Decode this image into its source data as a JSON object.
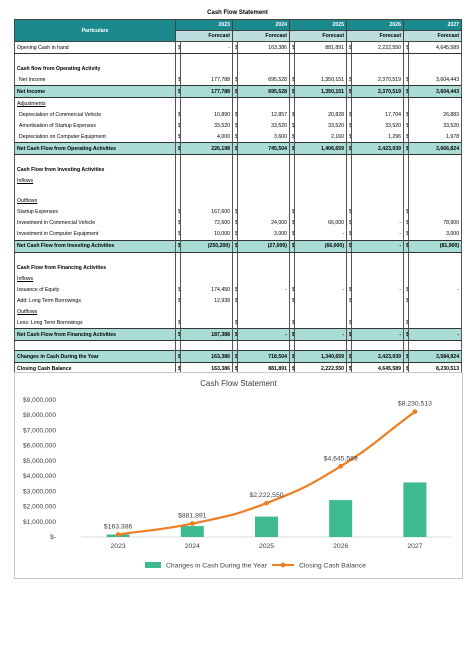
{
  "title": "Cash Flow Statement",
  "particulars_label": "Particulars",
  "years": [
    "2023",
    "2024",
    "2025",
    "2026",
    "2027"
  ],
  "forecast_label": "Forecast",
  "currency": "$",
  "rows": [
    {
      "label": "Opening Cash in hand",
      "values": [
        "-",
        "163,386",
        "881,891",
        "2,222,550",
        "4,645,589"
      ],
      "kind": "data"
    },
    {
      "label": "",
      "kind": "blank"
    },
    {
      "label": "Cash flow from Operating Activity",
      "kind": "section"
    },
    {
      "label": "Net Income",
      "values": [
        "177,788",
        "695,528",
        "1,350,151",
        "2,370,519",
        "3,604,443"
      ],
      "kind": "data",
      "indent": true
    },
    {
      "label": "Net Income",
      "values": [
        "177,788",
        "695,528",
        "1,350,151",
        "2,370,519",
        "3,604,443"
      ],
      "kind": "highlight"
    },
    {
      "label": "Adjustments",
      "kind": "underline"
    },
    {
      "label": "Depreciation of Commercial Vehicle",
      "values": [
        "10,890",
        "12,857",
        "20,828",
        "17,704",
        "26,883"
      ],
      "kind": "data",
      "indent": true
    },
    {
      "label": "Amortisation of Startup Expenses",
      "values": [
        "33,520",
        "33,520",
        "33,520",
        "33,520",
        "33,520"
      ],
      "kind": "data",
      "indent": true
    },
    {
      "label": "Depreciation on Computer Equipment",
      "values": [
        "4,000",
        "3,600",
        "2,160",
        "1,296",
        "1,978"
      ],
      "kind": "data",
      "indent": true
    },
    {
      "label": "Net Cash Flow from Operating Activities",
      "values": [
        "226,198",
        "745,504",
        "1,406,659",
        "2,423,039",
        "3,666,824"
      ],
      "kind": "highlight"
    },
    {
      "label": "",
      "kind": "blank"
    },
    {
      "label": "Cash Flow from Investing Activities",
      "kind": "section"
    },
    {
      "label": "Inflows",
      "kind": "underline"
    },
    {
      "label": "",
      "kind": "blank"
    },
    {
      "label": "Outflows",
      "kind": "underline"
    },
    {
      "label": "Startup Expenses",
      "values": [
        "167,600",
        "",
        "",
        "",
        ""
      ],
      "kind": "data"
    },
    {
      "label": "Investment in Commercial Vehicle",
      "values": [
        "72,600",
        "24,000",
        "66,000",
        "-",
        "78,900"
      ],
      "kind": "data"
    },
    {
      "label": "Investment in Computer Equipment",
      "values": [
        "10,000",
        "3,000",
        "-",
        "-",
        "3,000"
      ],
      "kind": "data"
    },
    {
      "label": "Net Cash Flow from Investing Activities",
      "values": [
        "(250,200)",
        "(27,000)",
        "(66,000)",
        "-",
        "(81,900)"
      ],
      "kind": "highlight"
    },
    {
      "label": "",
      "kind": "blank"
    },
    {
      "label": "Cash Flow from Financing Activities",
      "kind": "section"
    },
    {
      "label": "Inflows",
      "kind": "underline"
    },
    {
      "label": "Issuance of Equity",
      "values": [
        "174,450",
        "-",
        "-",
        "-",
        "-"
      ],
      "kind": "data"
    },
    {
      "label": "Add: Long Term Borrowings",
      "values": [
        "12,938",
        "",
        "",
        "",
        ""
      ],
      "kind": "data"
    },
    {
      "label": "Outflows",
      "kind": "underline"
    },
    {
      "label": "Less: Long Term Borrowings",
      "values": [
        "",
        "",
        "",
        "",
        ""
      ],
      "kind": "data"
    },
    {
      "label": "Net Cash Flow from Financing Activities",
      "values": [
        "187,388",
        "-",
        "-",
        "-",
        "-"
      ],
      "kind": "highlight"
    },
    {
      "label": "",
      "kind": "blank"
    },
    {
      "label": "Changes in Cash During the Year",
      "values": [
        "163,386",
        "718,504",
        "1,340,659",
        "2,423,039",
        "3,584,924"
      ],
      "kind": "highlight"
    },
    {
      "label": "Closing Cash Balance",
      "values": [
        "163,386",
        "881,891",
        "2,222,550",
        "4,645,589",
        "8,230,513"
      ],
      "kind": "total"
    }
  ],
  "chart_data": {
    "type": "bar",
    "title": "Cash Flow Statement",
    "categories": [
      "2023",
      "2024",
      "2025",
      "2026",
      "2027"
    ],
    "series": [
      {
        "name": "Changes in Cash During the Year",
        "type": "bar",
        "color": "#3dba8f",
        "values": [
          163386,
          718504,
          1340659,
          2423039,
          3584924
        ]
      },
      {
        "name": "Closing Cash Balance",
        "type": "line",
        "color": "#ef7d22",
        "values": [
          163386,
          881891,
          2222550,
          4645589,
          8230513
        ]
      }
    ],
    "data_labels": [
      "$163,386",
      "$881,891",
      "$2,222,550",
      "$4,645,589",
      "$8,230,513"
    ],
    "y_ticks": [
      "$-",
      "$1,000,000",
      "$2,000,000",
      "$3,000,000",
      "$4,000,000",
      "$5,000,000",
      "$6,000,000",
      "$7,000,000",
      "$8,000,000",
      "$9,000,000"
    ],
    "ylim": [
      0,
      9000000
    ],
    "grid": false,
    "legend": "bottom"
  }
}
